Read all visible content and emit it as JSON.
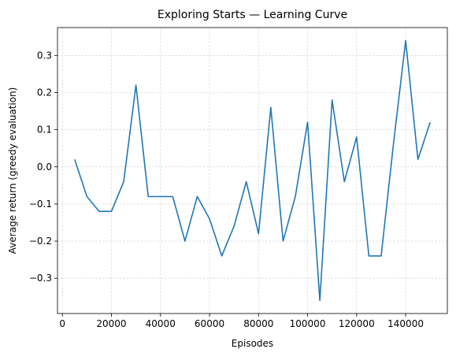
{
  "chart_data": {
    "type": "line",
    "title": "Exploring Starts — Learning Curve",
    "xlabel": "Episodes",
    "ylabel": "Average return (greedy evaluation)",
    "xlim": [
      -2000,
      157000
    ],
    "ylim": [
      -0.395,
      0.375
    ],
    "xticks": [
      0,
      20000,
      40000,
      60000,
      80000,
      100000,
      120000,
      140000
    ],
    "xtick_labels": [
      "0",
      "20000",
      "40000",
      "60000",
      "80000",
      "100000",
      "120000",
      "140000"
    ],
    "yticks": [
      -0.3,
      -0.2,
      -0.1,
      0.0,
      0.1,
      0.2,
      0.3
    ],
    "ytick_labels": [
      "−0.3",
      "−0.2",
      "−0.1",
      "0.0",
      "0.1",
      "0.2",
      "0.3"
    ],
    "grid": true,
    "series": [
      {
        "color": "#1f77b4",
        "x": [
          5000,
          10000,
          15000,
          20000,
          25000,
          30000,
          35000,
          40000,
          45000,
          50000,
          55000,
          60000,
          65000,
          70000,
          75000,
          80000,
          85000,
          90000,
          95000,
          100000,
          105000,
          110000,
          115000,
          120000,
          125000,
          130000,
          135000,
          140000,
          145000,
          150000
        ],
        "values": [
          0.02,
          -0.08,
          -0.12,
          -0.12,
          -0.04,
          0.22,
          -0.08,
          -0.08,
          -0.08,
          -0.2,
          -0.08,
          -0.14,
          -0.24,
          -0.16,
          -0.04,
          -0.18,
          0.16,
          -0.2,
          -0.08,
          0.12,
          -0.36,
          0.18,
          -0.04,
          0.08,
          -0.24,
          -0.24,
          0.06,
          0.34,
          0.02,
          0.12
        ]
      }
    ]
  }
}
